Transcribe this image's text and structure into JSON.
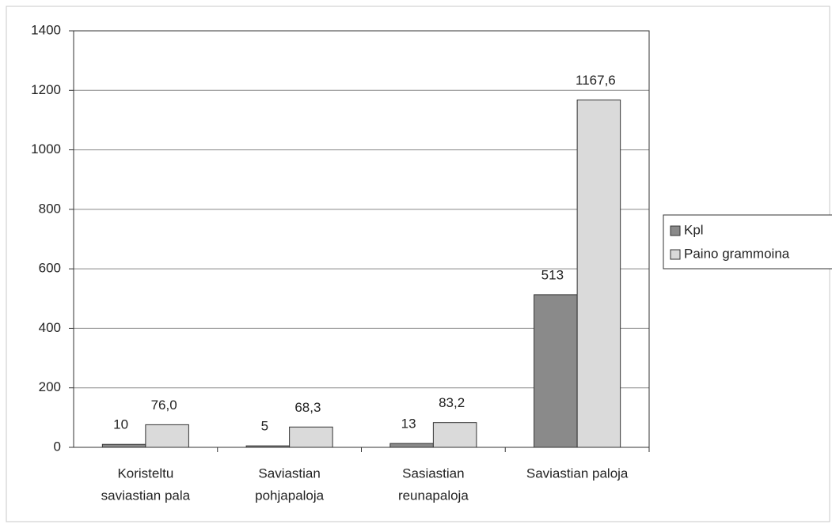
{
  "chart_data": {
    "type": "bar",
    "categories": [
      [
        "Koristeltu",
        "saviastian pala"
      ],
      [
        "Saviastian",
        "pohjapaloja"
      ],
      [
        "Sasiastian",
        "reunapaloja"
      ],
      [
        "Saviastian paloja"
      ]
    ],
    "series": [
      {
        "name": "Kpl",
        "color": "#8a8a8a",
        "values": [
          10,
          5,
          13,
          513
        ]
      },
      {
        "name": "Paino grammoina",
        "color": "#dadada",
        "values": [
          76.0,
          68.3,
          83.2,
          1167.6
        ],
        "value_labels": [
          "76,0",
          "68,3",
          "83,2",
          "1167,6"
        ]
      }
    ],
    "ylim": [
      0,
      1400
    ],
    "yticks": [
      0,
      200,
      400,
      600,
      800,
      1000,
      1200,
      1400
    ],
    "grid": true,
    "legend": "right"
  }
}
